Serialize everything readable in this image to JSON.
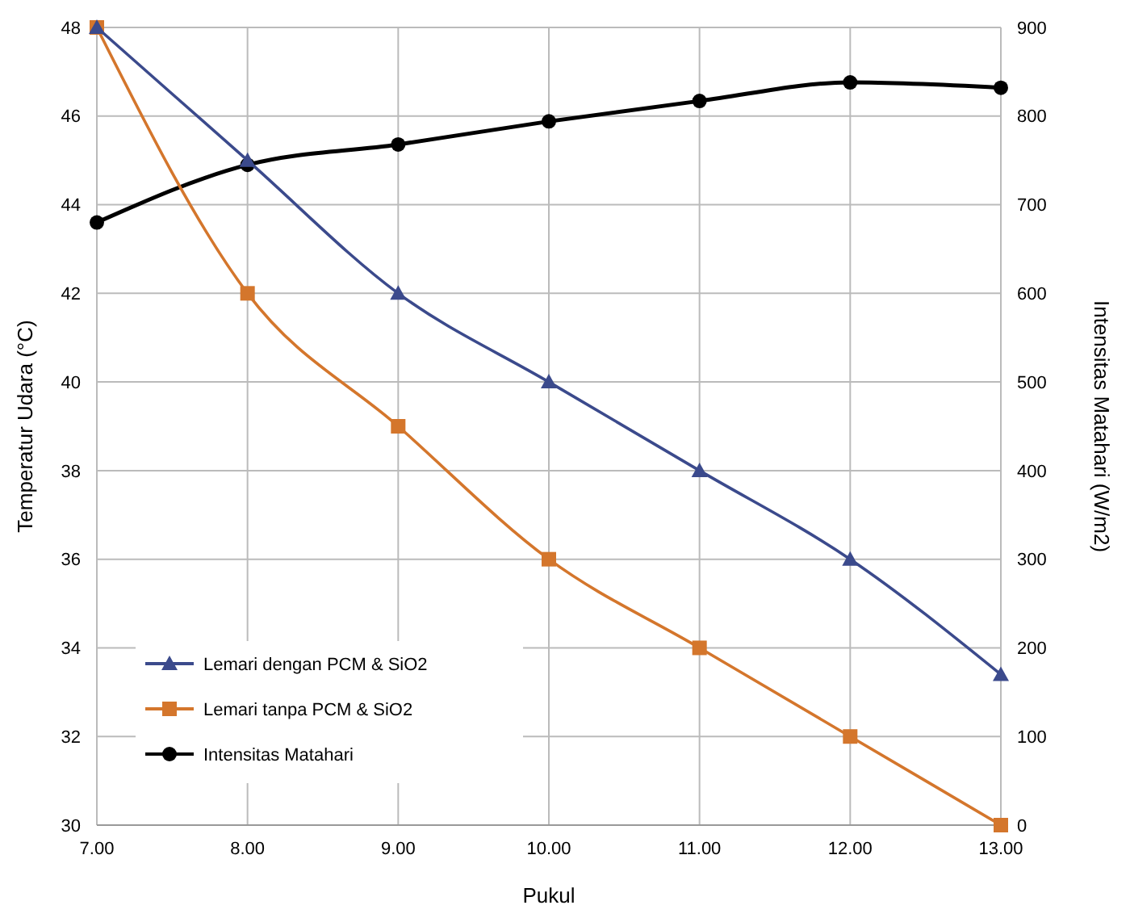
{
  "chart_data": {
    "type": "line",
    "xlabel": "Pukul",
    "ylabel": "Temperatur Udara (°C)",
    "y2label": "Intensitas Matahari (W/m2)",
    "categories": [
      "7.00",
      "8.00",
      "9.00",
      "10.00",
      "11.00",
      "12.00",
      "13.00"
    ],
    "series": [
      {
        "name": "Lemari dengan PCM & SiO2",
        "color": "#3b4a8c",
        "marker": "triangle",
        "values": [
          48,
          45,
          42,
          40,
          38,
          36,
          33.4
        ]
      },
      {
        "name": "Lemari tanpa PCM & SiO2",
        "color": "#d4762c",
        "marker": "square",
        "values": [
          48,
          42,
          39,
          36,
          34,
          32,
          30
        ]
      },
      {
        "name": "Intensitas Matahari",
        "color": "#000000",
        "marker": "circle",
        "axis": "y2",
        "values": [
          680,
          745,
          768,
          794,
          817,
          838,
          832
        ]
      }
    ],
    "ylim": [
      30,
      48
    ],
    "yticks": [
      30,
      32,
      34,
      36,
      38,
      40,
      42,
      44,
      46,
      48
    ],
    "y2lim": [
      0,
      900
    ],
    "y2ticks": [
      0,
      100,
      200,
      300,
      400,
      500,
      600,
      700,
      800,
      900
    ],
    "grid": true,
    "legend": "bottom left"
  }
}
